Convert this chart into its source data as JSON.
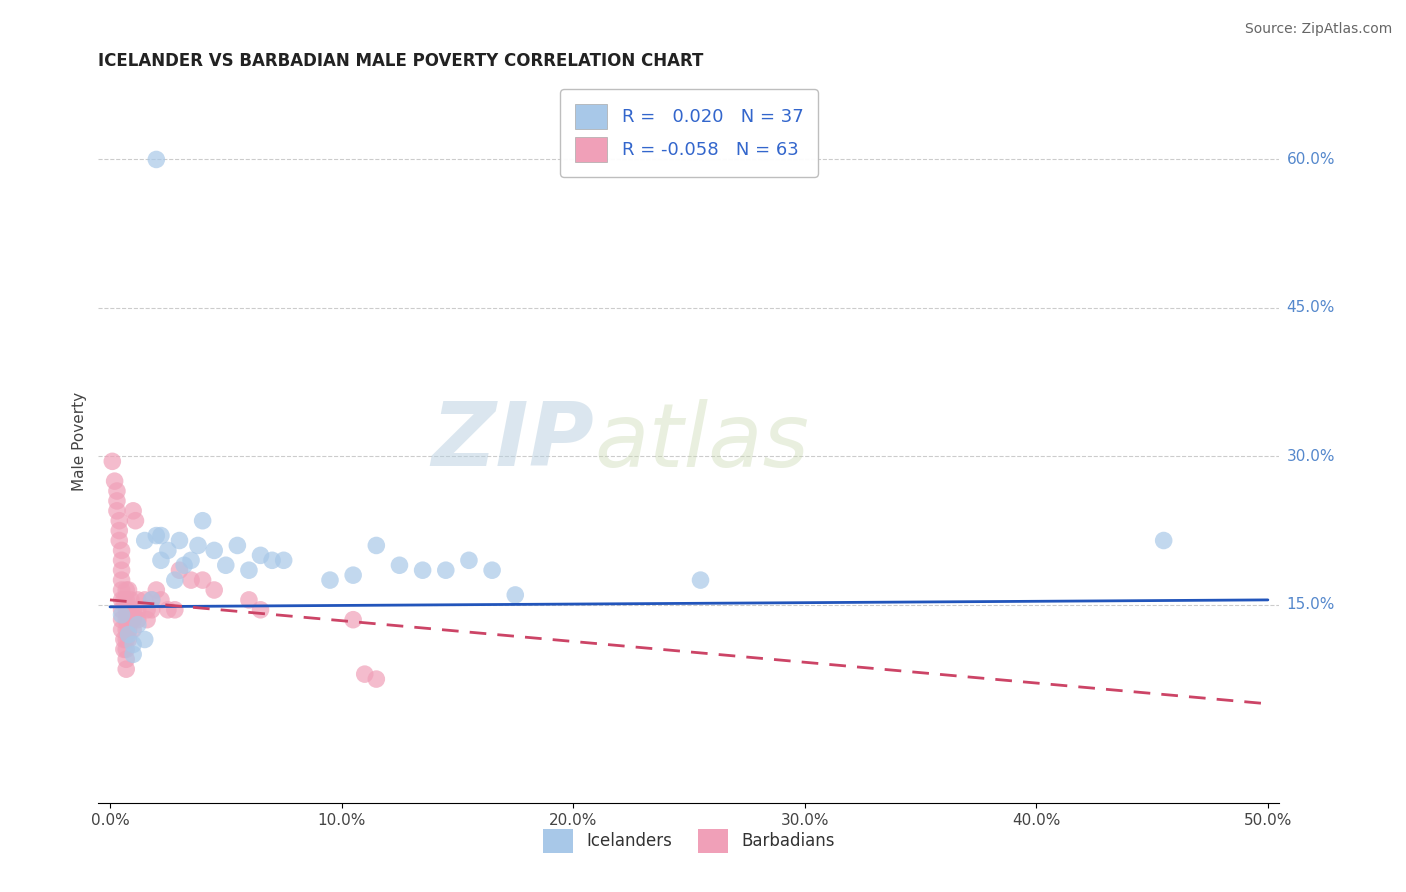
{
  "title": "ICELANDER VS BARBADIAN MALE POVERTY CORRELATION CHART",
  "source": "Source: ZipAtlas.com",
  "ylabel": "Male Poverty",
  "xlim": [
    -0.005,
    0.505
  ],
  "ylim": [
    -0.05,
    0.68
  ],
  "xticks": [
    0.0,
    0.1,
    0.2,
    0.3,
    0.4,
    0.5
  ],
  "xtick_labels": [
    "0.0%",
    "10.0%",
    "20.0%",
    "30.0%",
    "40.0%",
    "50.0%"
  ],
  "yticks": [
    0.15,
    0.3,
    0.45,
    0.6
  ],
  "ytick_labels": [
    "15.0%",
    "30.0%",
    "45.0%",
    "60.0%"
  ],
  "blue_color": "#a8c8e8",
  "pink_color": "#f0a0b8",
  "blue_line_color": "#2255bb",
  "pink_line_color": "#cc4466",
  "legend_R_blue": " 0.020",
  "legend_N_blue": "37",
  "legend_R_pink": "-0.058",
  "legend_N_pink": "63",
  "legend_label_blue": "Icelanders",
  "legend_label_pink": "Barbadians",
  "watermark_zip": "ZIP",
  "watermark_atlas": "atlas",
  "background_color": "#ffffff",
  "grid_color": "#cccccc",
  "blue_scatter": [
    [
      0.005,
      0.14
    ],
    [
      0.008,
      0.12
    ],
    [
      0.01,
      0.1
    ],
    [
      0.012,
      0.13
    ],
    [
      0.015,
      0.115
    ],
    [
      0.01,
      0.11
    ],
    [
      0.018,
      0.155
    ],
    [
      0.02,
      0.22
    ],
    [
      0.022,
      0.195
    ],
    [
      0.025,
      0.205
    ],
    [
      0.028,
      0.175
    ],
    [
      0.03,
      0.215
    ],
    [
      0.032,
      0.19
    ],
    [
      0.035,
      0.195
    ],
    [
      0.038,
      0.21
    ],
    [
      0.015,
      0.215
    ],
    [
      0.04,
      0.235
    ],
    [
      0.022,
      0.22
    ],
    [
      0.045,
      0.205
    ],
    [
      0.05,
      0.19
    ],
    [
      0.055,
      0.21
    ],
    [
      0.06,
      0.185
    ],
    [
      0.065,
      0.2
    ],
    [
      0.07,
      0.195
    ],
    [
      0.075,
      0.195
    ],
    [
      0.095,
      0.175
    ],
    [
      0.105,
      0.18
    ],
    [
      0.115,
      0.21
    ],
    [
      0.125,
      0.19
    ],
    [
      0.135,
      0.185
    ],
    [
      0.145,
      0.185
    ],
    [
      0.155,
      0.195
    ],
    [
      0.165,
      0.185
    ],
    [
      0.175,
      0.16
    ],
    [
      0.255,
      0.175
    ],
    [
      0.455,
      0.215
    ],
    [
      0.02,
      0.6
    ]
  ],
  "pink_scatter": [
    [
      0.001,
      0.295
    ],
    [
      0.002,
      0.275
    ],
    [
      0.003,
      0.265
    ],
    [
      0.003,
      0.255
    ],
    [
      0.003,
      0.245
    ],
    [
      0.004,
      0.235
    ],
    [
      0.004,
      0.225
    ],
    [
      0.004,
      0.215
    ],
    [
      0.005,
      0.205
    ],
    [
      0.005,
      0.195
    ],
    [
      0.005,
      0.185
    ],
    [
      0.005,
      0.175
    ],
    [
      0.005,
      0.165
    ],
    [
      0.005,
      0.155
    ],
    [
      0.005,
      0.145
    ],
    [
      0.005,
      0.135
    ],
    [
      0.005,
      0.125
    ],
    [
      0.006,
      0.115
    ],
    [
      0.006,
      0.105
    ],
    [
      0.006,
      0.155
    ],
    [
      0.007,
      0.165
    ],
    [
      0.007,
      0.155
    ],
    [
      0.007,
      0.145
    ],
    [
      0.007,
      0.135
    ],
    [
      0.007,
      0.125
    ],
    [
      0.007,
      0.115
    ],
    [
      0.007,
      0.105
    ],
    [
      0.007,
      0.095
    ],
    [
      0.007,
      0.085
    ],
    [
      0.008,
      0.165
    ],
    [
      0.008,
      0.145
    ],
    [
      0.008,
      0.135
    ],
    [
      0.008,
      0.125
    ],
    [
      0.008,
      0.115
    ],
    [
      0.009,
      0.155
    ],
    [
      0.009,
      0.145
    ],
    [
      0.009,
      0.135
    ],
    [
      0.01,
      0.145
    ],
    [
      0.01,
      0.135
    ],
    [
      0.01,
      0.125
    ],
    [
      0.01,
      0.245
    ],
    [
      0.011,
      0.235
    ],
    [
      0.012,
      0.155
    ],
    [
      0.012,
      0.145
    ],
    [
      0.012,
      0.135
    ],
    [
      0.015,
      0.155
    ],
    [
      0.016,
      0.145
    ],
    [
      0.016,
      0.135
    ],
    [
      0.018,
      0.145
    ],
    [
      0.018,
      0.155
    ],
    [
      0.02,
      0.165
    ],
    [
      0.022,
      0.155
    ],
    [
      0.025,
      0.145
    ],
    [
      0.028,
      0.145
    ],
    [
      0.03,
      0.185
    ],
    [
      0.035,
      0.175
    ],
    [
      0.04,
      0.175
    ],
    [
      0.045,
      0.165
    ],
    [
      0.06,
      0.155
    ],
    [
      0.065,
      0.145
    ],
    [
      0.105,
      0.135
    ],
    [
      0.11,
      0.08
    ],
    [
      0.115,
      0.075
    ]
  ],
  "blue_trend_x": [
    0.0,
    0.5
  ],
  "blue_trend_y": [
    0.148,
    0.155
  ],
  "pink_trend_x": [
    0.0,
    0.5
  ],
  "pink_trend_y": [
    0.155,
    0.05
  ],
  "title_fontsize": 12,
  "axis_label_fontsize": 11,
  "tick_fontsize": 11,
  "source_fontsize": 10
}
